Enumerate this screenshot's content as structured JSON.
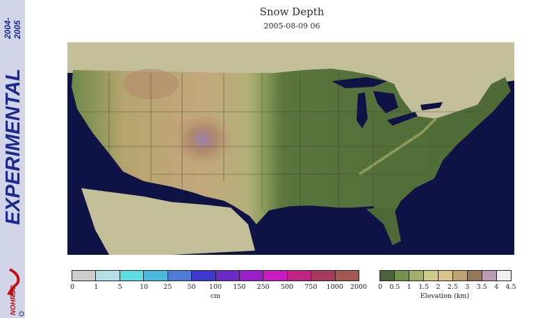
{
  "sidebar": {
    "years_top": "2004-",
    "years_bottom": "2005",
    "label": "EXPERIMENTAL",
    "logo_text": "NOHRSC"
  },
  "header": {
    "title": "Snow Depth",
    "datetime": "2005-08-09 06"
  },
  "snow_legend": {
    "ticks": [
      "0",
      "1",
      "5",
      "10",
      "25",
      "50",
      "100",
      "150",
      "250",
      "500",
      "750",
      "1000",
      "2000"
    ],
    "unit": "cm",
    "colors": [
      "#cdcdcd",
      "#b4dfe6",
      "#5fdde1",
      "#4bb9dd",
      "#4f7bd6",
      "#3b3acb",
      "#6a2bc6",
      "#9c1ec9",
      "#c81cc2",
      "#c02487",
      "#a93a5e",
      "#a25a50"
    ]
  },
  "elevation_legend": {
    "ticks": [
      "0",
      "0.5",
      "1",
      "1.5",
      "2",
      "2.5",
      "3",
      "3.5",
      "4",
      "4.5"
    ],
    "unit": "Elevation (km)",
    "colors": [
      "#4b6137",
      "#74904e",
      "#a4ae6c",
      "#cfc98a",
      "#d9c58b",
      "#bfa172",
      "#967757",
      "#b89cb4",
      "#f0f0f0"
    ]
  },
  "map": {
    "ocean_color": "#0f1244",
    "foreign_land_color": "#c2bf99",
    "lowland_color": "#4f6b38"
  }
}
